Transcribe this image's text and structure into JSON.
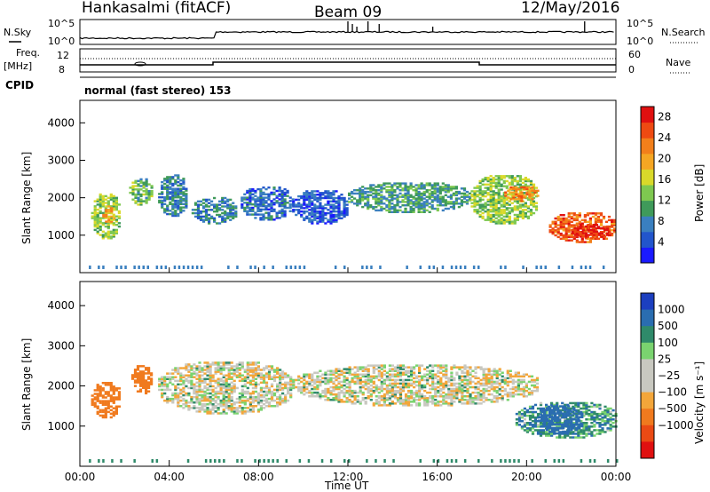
{
  "header": {
    "station": "Hankasalmi (fitACF)",
    "beam": "Beam 09",
    "date": "12/May/2016"
  },
  "status_panels": {
    "nsky_label": "N.Sky",
    "nsearch_label": "N.Search",
    "freq_label": "Freq.",
    "freq_unit": "[MHz]",
    "nave_label": "Nave",
    "cpid_label": "CPID",
    "noise_ticks_left": [
      "10^5",
      "10^0"
    ],
    "noise_ticks_right": [
      "10^5",
      "10^0"
    ],
    "freq_ticks": [
      "12",
      "8"
    ],
    "nave_ticks": [
      "60",
      "0"
    ],
    "cpid_text": "normal (fast stereo) 153"
  },
  "colors": {
    "power_scale": [
      "#1a1aff",
      "#2255cc",
      "#3a7fbf",
      "#3f9a5a",
      "#7ec850",
      "#d9d92a",
      "#f5a623",
      "#f27f1b",
      "#ee4a12",
      "#e01010"
    ],
    "velocity_scale": [
      "#1c3fbf",
      "#2a6db0",
      "#2f8a6a",
      "#7ad36f",
      "#c8c8c0",
      "#c8c8c0",
      "#f3a63a",
      "#f07a1e",
      "#ea4a14",
      "#e01010"
    ]
  },
  "chart_data": [
    {
      "type": "heatmap",
      "panel": "power",
      "ylabel": "Slant Range [km]",
      "yticks": [
        1000,
        2000,
        3000,
        4000
      ],
      "ylim": [
        0,
        4600
      ],
      "xlabel": "",
      "colorbar_label": "Power [dB]",
      "colorbar_ticks": [
        4,
        8,
        12,
        16,
        20,
        24,
        28
      ],
      "clim": [
        0,
        30
      ],
      "regions": [
        {
          "t": [
            0.5,
            1.8
          ],
          "r": [
            900,
            2100
          ],
          "v": 14
        },
        {
          "t": [
            1.0,
            1.5
          ],
          "r": [
            1300,
            1800
          ],
          "v": 20
        },
        {
          "t": [
            2.2,
            3.2
          ],
          "r": [
            1800,
            2500
          ],
          "v": 12
        },
        {
          "t": [
            3.5,
            4.8
          ],
          "r": [
            1500,
            2600
          ],
          "v": 8
        },
        {
          "t": [
            5.0,
            7.0
          ],
          "r": [
            1300,
            2000
          ],
          "v": 8
        },
        {
          "t": [
            7.2,
            9.5
          ],
          "r": [
            1400,
            2300
          ],
          "v": 6
        },
        {
          "t": [
            9.5,
            12.0
          ],
          "r": [
            1300,
            2200
          ],
          "v": 5
        },
        {
          "t": [
            12.0,
            17.5
          ],
          "r": [
            1600,
            2400
          ],
          "v": 10
        },
        {
          "t": [
            17.5,
            20.5
          ],
          "r": [
            1300,
            2600
          ],
          "v": 14
        },
        {
          "t": [
            19.0,
            20.5
          ],
          "r": [
            1900,
            2300
          ],
          "v": 22
        },
        {
          "t": [
            21.0,
            24.0
          ],
          "r": [
            800,
            1600
          ],
          "v": 24
        },
        {
          "t": [
            22.0,
            23.8
          ],
          "r": [
            900,
            1300
          ],
          "v": 28
        }
      ]
    },
    {
      "type": "heatmap",
      "panel": "velocity",
      "ylabel": "Slant Range [km]",
      "yticks": [
        1000,
        2000,
        3000,
        4000
      ],
      "ylim": [
        0,
        4600
      ],
      "xlabel": "Time UT",
      "xticks": [
        "00:00",
        "04:00",
        "08:00",
        "12:00",
        "16:00",
        "20:00",
        "00:00"
      ],
      "xlim": [
        0,
        24
      ],
      "colorbar_label": "Velocity [m s⁻¹]",
      "colorbar_ticks": [
        "1000",
        "500",
        "100",
        "25",
        "−25",
        "−100",
        "−500",
        "−1000"
      ],
      "regions": [
        {
          "t": [
            0.5,
            1.8
          ],
          "r": [
            1200,
            2100
          ],
          "v": -400
        },
        {
          "t": [
            2.3,
            3.2
          ],
          "r": [
            1800,
            2500
          ],
          "v": -400
        },
        {
          "t": [
            3.5,
            9.5
          ],
          "r": [
            1300,
            2600
          ],
          "v": 0
        },
        {
          "t": [
            9.5,
            20.5
          ],
          "r": [
            1500,
            2500
          ],
          "v": 0
        },
        {
          "t": [
            19.5,
            24.0
          ],
          "r": [
            700,
            1600
          ],
          "v": 80
        },
        {
          "t": [
            20.5,
            22.5
          ],
          "r": [
            800,
            1500
          ],
          "v": 400
        }
      ]
    }
  ]
}
